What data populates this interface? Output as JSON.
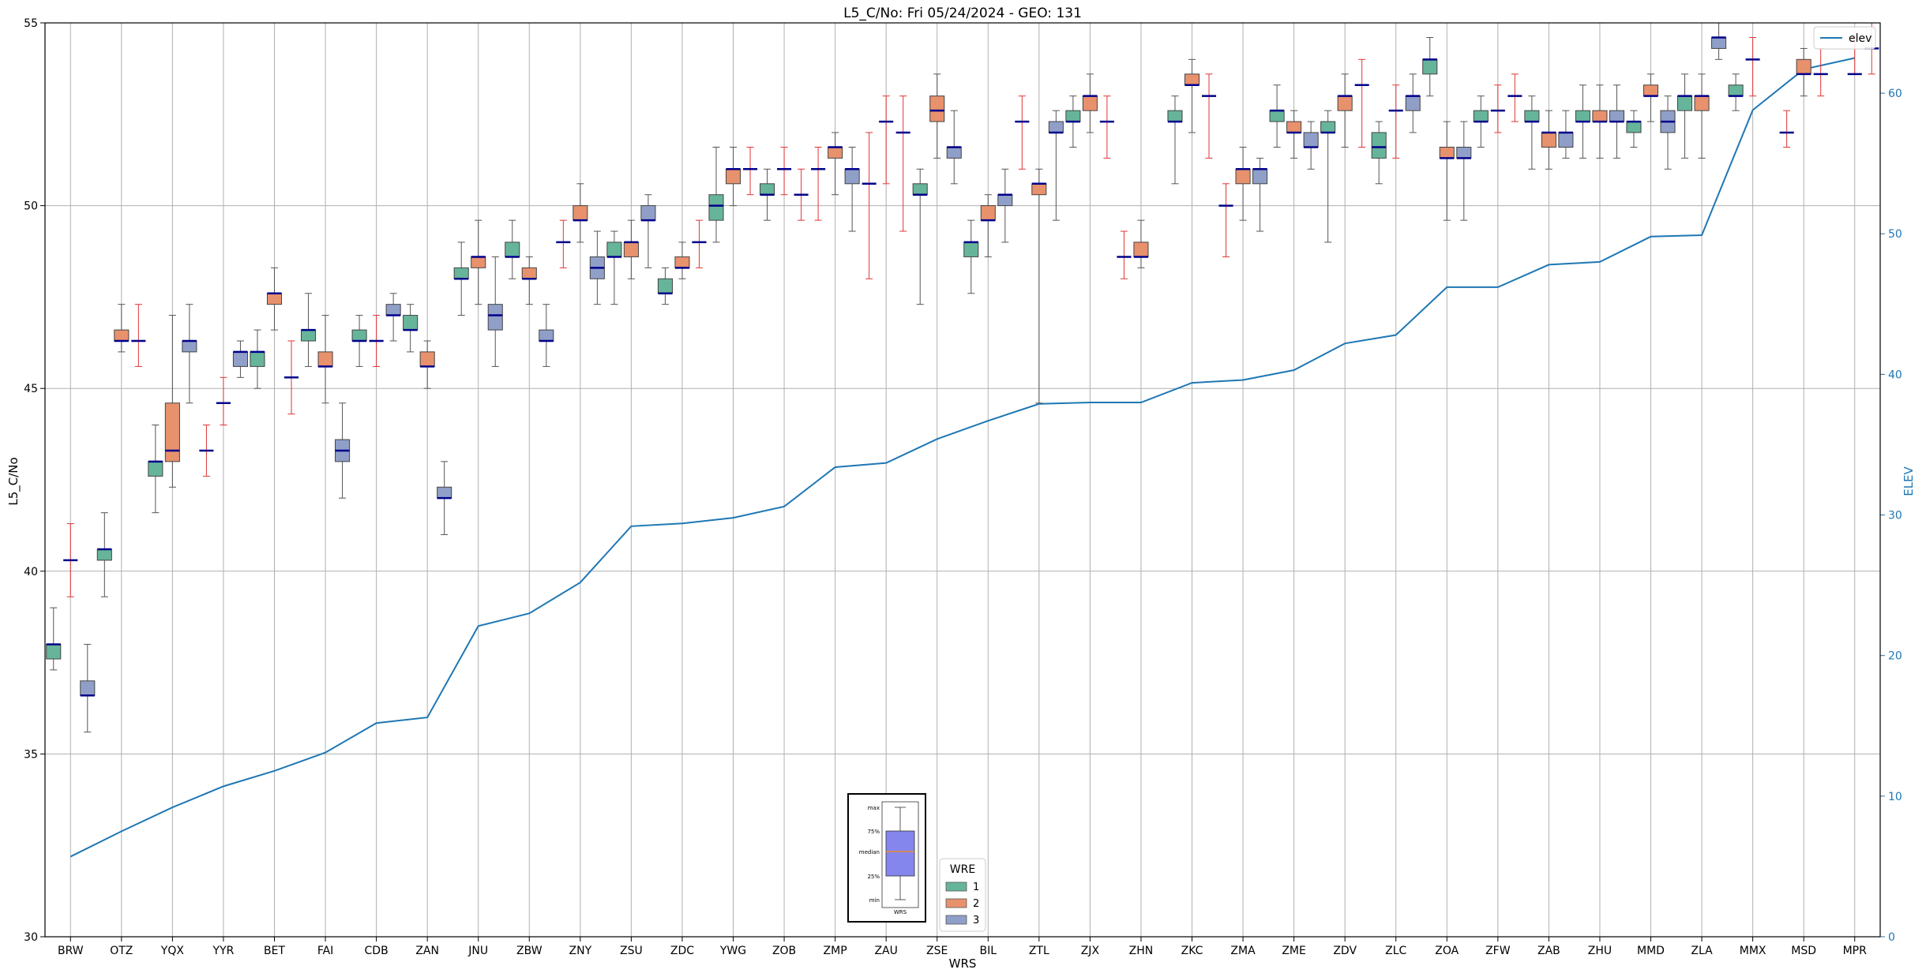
{
  "chart_data": {
    "type": "box",
    "title": "L5_C/No: Fri 05/24/2024 - GEO: 131",
    "xlabel": "WRS",
    "ylabel": "L5_C/No",
    "y2label": "ELEV",
    "ylim": [
      30,
      55
    ],
    "y2lim": [
      0,
      65
    ],
    "yticks": [
      30,
      35,
      40,
      45,
      50,
      55
    ],
    "y2ticks": [
      0,
      10,
      20,
      30,
      40,
      50,
      60
    ],
    "grid": true,
    "categories": [
      "BRW",
      "OTZ",
      "YQX",
      "YYR",
      "BET",
      "FAI",
      "CDB",
      "ZAN",
      "JNU",
      "ZBW",
      "ZNY",
      "ZSU",
      "ZDC",
      "YWG",
      "ZOB",
      "ZMP",
      "ZAU",
      "ZSE",
      "BIL",
      "ZTL",
      "ZJX",
      "ZHN",
      "ZKC",
      "ZMA",
      "ZME",
      "ZDV",
      "ZLC",
      "ZOA",
      "ZFW",
      "ZAB",
      "ZHU",
      "MMD",
      "ZLA",
      "MMX",
      "MSD",
      "MPR"
    ],
    "legend": {
      "title": "WRE",
      "placement": "bottom-center",
      "entries": [
        {
          "name": "1",
          "color": "#66b59a"
        },
        {
          "name": "2",
          "color": "#e8916d"
        },
        {
          "name": "3",
          "color": "#8f9fc8"
        }
      ]
    },
    "line_legend": {
      "name": "elev",
      "placement": "top-right",
      "color": "#1f77b4"
    },
    "key_box": {
      "labels": [
        "max",
        "75%",
        "median",
        "25%",
        "min"
      ],
      "xlabel": "WRS",
      "color": "#8585ee"
    },
    "elevation": [
      5.7,
      7.5,
      9.2,
      10.7,
      11.8,
      13.1,
      15.2,
      15.6,
      22.1,
      23.0,
      25.2,
      29.2,
      29.4,
      29.8,
      30.6,
      33.4,
      33.7,
      35.4,
      36.7,
      37.9,
      38.0,
      38.0,
      39.4,
      39.6,
      40.3,
      42.2,
      42.8,
      46.2,
      46.2,
      47.8,
      48.0,
      49.8,
      49.9,
      58.8,
      61.7,
      62.5
    ],
    "boxes": [
      {
        "cat": "BRW",
        "wre": 1,
        "min": 37.3,
        "q1": 37.6,
        "median": 38.0,
        "q3": 38.0,
        "max": 39.0
      },
      {
        "cat": "BRW",
        "wre": 2,
        "min": 39.3,
        "q1": 40.3,
        "median": 40.3,
        "q3": 40.3,
        "max": 41.3
      },
      {
        "cat": "BRW",
        "wre": 3,
        "min": 35.6,
        "q1": 36.6,
        "median": 36.6,
        "q3": 37.0,
        "max": 38.0
      },
      {
        "cat": "OTZ",
        "wre": 1,
        "min": 39.3,
        "q1": 40.3,
        "median": 40.6,
        "q3": 40.6,
        "max": 41.6
      },
      {
        "cat": "OTZ",
        "wre": 2,
        "min": 46.0,
        "q1": 46.3,
        "median": 46.3,
        "q3": 46.6,
        "max": 47.3
      },
      {
        "cat": "OTZ",
        "wre": 3,
        "min": 45.6,
        "q1": 46.3,
        "median": 46.3,
        "q3": 46.3,
        "max": 47.3
      },
      {
        "cat": "YQX",
        "wre": 1,
        "min": 41.6,
        "q1": 42.6,
        "median": 43.0,
        "q3": 43.0,
        "max": 44.0
      },
      {
        "cat": "YQX",
        "wre": 2,
        "min": 42.3,
        "q1": 43.0,
        "median": 43.3,
        "q3": 44.6,
        "max": 47.0
      },
      {
        "cat": "YQX",
        "wre": 3,
        "min": 44.6,
        "q1": 46.0,
        "median": 46.3,
        "q3": 46.3,
        "max": 47.3
      },
      {
        "cat": "YYR",
        "wre": 1,
        "min": 42.6,
        "q1": 43.3,
        "median": 43.3,
        "q3": 43.3,
        "max": 44.0
      },
      {
        "cat": "YYR",
        "wre": 2,
        "min": 44.0,
        "q1": 44.6,
        "median": 44.6,
        "q3": 44.6,
        "max": 45.3
      },
      {
        "cat": "YYR",
        "wre": 3,
        "min": 45.3,
        "q1": 45.6,
        "median": 46.0,
        "q3": 46.0,
        "max": 46.3
      },
      {
        "cat": "BET",
        "wre": 1,
        "min": 45.0,
        "q1": 45.6,
        "median": 46.0,
        "q3": 46.0,
        "max": 46.6
      },
      {
        "cat": "BET",
        "wre": 2,
        "min": 46.6,
        "q1": 47.3,
        "median": 47.6,
        "q3": 47.6,
        "max": 48.3
      },
      {
        "cat": "BET",
        "wre": 3,
        "min": 44.3,
        "q1": 45.3,
        "median": 45.3,
        "q3": 45.3,
        "max": 46.3
      },
      {
        "cat": "FAI",
        "wre": 1,
        "min": 45.6,
        "q1": 46.3,
        "median": 46.6,
        "q3": 46.6,
        "max": 47.6
      },
      {
        "cat": "FAI",
        "wre": 2,
        "min": 44.6,
        "q1": 45.6,
        "median": 45.6,
        "q3": 46.0,
        "max": 47.0
      },
      {
        "cat": "FAI",
        "wre": 3,
        "min": 42.0,
        "q1": 43.0,
        "median": 43.3,
        "q3": 43.6,
        "max": 44.6
      },
      {
        "cat": "CDB",
        "wre": 1,
        "min": 45.6,
        "q1": 46.3,
        "median": 46.3,
        "q3": 46.6,
        "max": 47.0
      },
      {
        "cat": "CDB",
        "wre": 2,
        "min": 45.6,
        "q1": 46.3,
        "median": 46.3,
        "q3": 46.3,
        "max": 47.0
      },
      {
        "cat": "CDB",
        "wre": 3,
        "min": 46.3,
        "q1": 47.0,
        "median": 47.0,
        "q3": 47.3,
        "max": 47.6
      },
      {
        "cat": "ZAN",
        "wre": 1,
        "min": 46.0,
        "q1": 46.6,
        "median": 46.6,
        "q3": 47.0,
        "max": 47.3
      },
      {
        "cat": "ZAN",
        "wre": 2,
        "min": 45.0,
        "q1": 45.6,
        "median": 45.6,
        "q3": 46.0,
        "max": 46.3
      },
      {
        "cat": "ZAN",
        "wre": 3,
        "min": 41.0,
        "q1": 42.0,
        "median": 42.0,
        "q3": 42.3,
        "max": 43.0
      },
      {
        "cat": "JNU",
        "wre": 1,
        "min": 47.0,
        "q1": 48.0,
        "median": 48.0,
        "q3": 48.3,
        "max": 49.0
      },
      {
        "cat": "JNU",
        "wre": 2,
        "min": 47.3,
        "q1": 48.3,
        "median": 48.6,
        "q3": 48.6,
        "max": 49.6
      },
      {
        "cat": "JNU",
        "wre": 3,
        "min": 45.6,
        "q1": 46.6,
        "median": 47.0,
        "q3": 47.3,
        "max": 48.6
      },
      {
        "cat": "ZBW",
        "wre": 1,
        "min": 48.0,
        "q1": 48.6,
        "median": 48.6,
        "q3": 49.0,
        "max": 49.6
      },
      {
        "cat": "ZBW",
        "wre": 2,
        "min": 47.3,
        "q1": 48.0,
        "median": 48.0,
        "q3": 48.3,
        "max": 48.6
      },
      {
        "cat": "ZBW",
        "wre": 3,
        "min": 45.6,
        "q1": 46.3,
        "median": 46.3,
        "q3": 46.6,
        "max": 47.3
      },
      {
        "cat": "ZNY",
        "wre": 1,
        "min": 48.3,
        "q1": 49.0,
        "median": 49.0,
        "q3": 49.0,
        "max": 49.6
      },
      {
        "cat": "ZNY",
        "wre": 2,
        "min": 49.0,
        "q1": 49.6,
        "median": 49.6,
        "q3": 50.0,
        "max": 50.6
      },
      {
        "cat": "ZNY",
        "wre": 3,
        "min": 47.3,
        "q1": 48.0,
        "median": 48.3,
        "q3": 48.6,
        "max": 49.3
      },
      {
        "cat": "ZSU",
        "wre": 1,
        "min": 47.3,
        "q1": 48.6,
        "median": 48.6,
        "q3": 49.0,
        "max": 49.3
      },
      {
        "cat": "ZSU",
        "wre": 2,
        "min": 48.0,
        "q1": 48.6,
        "median": 49.0,
        "q3": 49.0,
        "max": 49.6
      },
      {
        "cat": "ZSU",
        "wre": 3,
        "min": 48.3,
        "q1": 49.6,
        "median": 49.6,
        "q3": 50.0,
        "max": 50.3
      },
      {
        "cat": "ZDC",
        "wre": 1,
        "min": 47.3,
        "q1": 47.6,
        "median": 47.6,
        "q3": 48.0,
        "max": 48.3
      },
      {
        "cat": "ZDC",
        "wre": 2,
        "min": 48.0,
        "q1": 48.3,
        "median": 48.3,
        "q3": 48.6,
        "max": 49.0
      },
      {
        "cat": "ZDC",
        "wre": 3,
        "min": 48.3,
        "q1": 49.0,
        "median": 49.0,
        "q3": 49.0,
        "max": 49.6
      },
      {
        "cat": "YWG",
        "wre": 1,
        "min": 49.0,
        "q1": 49.6,
        "median": 50.0,
        "q3": 50.3,
        "max": 51.6
      },
      {
        "cat": "YWG",
        "wre": 2,
        "min": 50.0,
        "q1": 50.6,
        "median": 51.0,
        "q3": 51.0,
        "max": 51.6
      },
      {
        "cat": "YWG",
        "wre": 3,
        "min": 50.3,
        "q1": 51.0,
        "median": 51.0,
        "q3": 51.0,
        "max": 51.6
      },
      {
        "cat": "ZOB",
        "wre": 1,
        "min": 49.6,
        "q1": 50.3,
        "median": 50.3,
        "q3": 50.6,
        "max": 51.0
      },
      {
        "cat": "ZOB",
        "wre": 2,
        "min": 50.3,
        "q1": 51.0,
        "median": 51.0,
        "q3": 51.0,
        "max": 51.6
      },
      {
        "cat": "ZOB",
        "wre": 3,
        "min": 49.6,
        "q1": 50.3,
        "median": 50.3,
        "q3": 50.3,
        "max": 51.0
      },
      {
        "cat": "ZMP",
        "wre": 1,
        "min": 49.6,
        "q1": 51.0,
        "median": 51.0,
        "q3": 51.0,
        "max": 51.6
      },
      {
        "cat": "ZMP",
        "wre": 2,
        "min": 50.3,
        "q1": 51.3,
        "median": 51.6,
        "q3": 51.6,
        "max": 52.0
      },
      {
        "cat": "ZMP",
        "wre": 3,
        "min": 49.3,
        "q1": 50.6,
        "median": 51.0,
        "q3": 51.0,
        "max": 51.6
      },
      {
        "cat": "ZAU",
        "wre": 1,
        "min": 48.0,
        "q1": 50.6,
        "median": 50.6,
        "q3": 50.6,
        "max": 52.0
      },
      {
        "cat": "ZAU",
        "wre": 2,
        "min": 50.6,
        "q1": 52.3,
        "median": 52.3,
        "q3": 52.3,
        "max": 53.0
      },
      {
        "cat": "ZAU",
        "wre": 3,
        "min": 49.3,
        "q1": 52.0,
        "median": 52.0,
        "q3": 52.0,
        "max": 53.0
      },
      {
        "cat": "ZSE",
        "wre": 1,
        "min": 47.3,
        "q1": 50.3,
        "median": 50.3,
        "q3": 50.6,
        "max": 51.0
      },
      {
        "cat": "ZSE",
        "wre": 2,
        "min": 51.3,
        "q1": 52.3,
        "median": 52.6,
        "q3": 53.0,
        "max": 53.6
      },
      {
        "cat": "ZSE",
        "wre": 3,
        "min": 50.6,
        "q1": 51.3,
        "median": 51.6,
        "q3": 51.6,
        "max": 52.6
      },
      {
        "cat": "BIL",
        "wre": 1,
        "min": 47.6,
        "q1": 48.6,
        "median": 49.0,
        "q3": 49.0,
        "max": 49.6
      },
      {
        "cat": "BIL",
        "wre": 2,
        "min": 48.6,
        "q1": 49.6,
        "median": 49.6,
        "q3": 50.0,
        "max": 50.3
      },
      {
        "cat": "BIL",
        "wre": 3,
        "min": 49.0,
        "q1": 50.0,
        "median": 50.3,
        "q3": 50.3,
        "max": 51.0
      },
      {
        "cat": "ZTL",
        "wre": 1,
        "min": 51.0,
        "q1": 52.3,
        "median": 52.3,
        "q3": 52.3,
        "max": 53.0
      },
      {
        "cat": "ZTL",
        "wre": 2,
        "min": 44.6,
        "q1": 50.3,
        "median": 50.6,
        "q3": 50.6,
        "max": 51.0
      },
      {
        "cat": "ZTL",
        "wre": 3,
        "min": 49.6,
        "q1": 52.0,
        "median": 52.0,
        "q3": 52.3,
        "max": 52.6
      },
      {
        "cat": "ZJX",
        "wre": 1,
        "min": 51.6,
        "q1": 52.3,
        "median": 52.3,
        "q3": 52.6,
        "max": 53.0
      },
      {
        "cat": "ZJX",
        "wre": 2,
        "min": 52.0,
        "q1": 52.6,
        "median": 53.0,
        "q3": 53.0,
        "max": 53.6
      },
      {
        "cat": "ZJX",
        "wre": 3,
        "min": 51.3,
        "q1": 52.3,
        "median": 52.3,
        "q3": 52.3,
        "max": 53.0
      },
      {
        "cat": "ZHN",
        "wre": 1,
        "min": 48.0,
        "q1": 48.6,
        "median": 48.6,
        "q3": 48.6,
        "max": 49.3
      },
      {
        "cat": "ZHN",
        "wre": 2,
        "min": 48.3,
        "q1": 48.6,
        "median": 48.6,
        "q3": 49.0,
        "max": 49.6
      },
      {
        "cat": "ZKC",
        "wre": 1,
        "min": 50.6,
        "q1": 52.3,
        "median": 52.3,
        "q3": 52.6,
        "max": 53.0
      },
      {
        "cat": "ZKC",
        "wre": 2,
        "min": 52.0,
        "q1": 53.3,
        "median": 53.3,
        "q3": 53.6,
        "max": 54.0
      },
      {
        "cat": "ZKC",
        "wre": 3,
        "min": 51.3,
        "q1": 53.0,
        "median": 53.0,
        "q3": 53.0,
        "max": 53.6
      },
      {
        "cat": "ZMA",
        "wre": 1,
        "min": 48.6,
        "q1": 50.0,
        "median": 50.0,
        "q3": 50.0,
        "max": 50.6
      },
      {
        "cat": "ZMA",
        "wre": 2,
        "min": 49.6,
        "q1": 50.6,
        "median": 51.0,
        "q3": 51.0,
        "max": 51.6
      },
      {
        "cat": "ZMA",
        "wre": 3,
        "min": 49.3,
        "q1": 50.6,
        "median": 51.0,
        "q3": 51.0,
        "max": 51.3
      },
      {
        "cat": "ZME",
        "wre": 1,
        "min": 51.6,
        "q1": 52.3,
        "median": 52.6,
        "q3": 52.6,
        "max": 53.3
      },
      {
        "cat": "ZME",
        "wre": 2,
        "min": 51.3,
        "q1": 52.0,
        "median": 52.0,
        "q3": 52.3,
        "max": 52.6
      },
      {
        "cat": "ZME",
        "wre": 3,
        "min": 51.0,
        "q1": 51.6,
        "median": 51.6,
        "q3": 52.0,
        "max": 52.3
      },
      {
        "cat": "ZDV",
        "wre": 1,
        "min": 49.0,
        "q1": 52.0,
        "median": 52.0,
        "q3": 52.3,
        "max": 52.6
      },
      {
        "cat": "ZDV",
        "wre": 2,
        "min": 51.6,
        "q1": 52.6,
        "median": 53.0,
        "q3": 53.0,
        "max": 53.6
      },
      {
        "cat": "ZDV",
        "wre": 3,
        "min": 51.6,
        "q1": 53.3,
        "median": 53.3,
        "q3": 53.3,
        "max": 54.0
      },
      {
        "cat": "ZLC",
        "wre": 1,
        "min": 50.6,
        "q1": 51.3,
        "median": 51.6,
        "q3": 52.0,
        "max": 52.3
      },
      {
        "cat": "ZLC",
        "wre": 2,
        "min": 51.3,
        "q1": 52.6,
        "median": 52.6,
        "q3": 52.6,
        "max": 53.3
      },
      {
        "cat": "ZLC",
        "wre": 3,
        "min": 52.0,
        "q1": 52.6,
        "median": 53.0,
        "q3": 53.0,
        "max": 53.6
      },
      {
        "cat": "ZOA",
        "wre": 1,
        "min": 53.0,
        "q1": 53.6,
        "median": 54.0,
        "q3": 54.0,
        "max": 54.6
      },
      {
        "cat": "ZOA",
        "wre": 2,
        "min": 49.6,
        "q1": 51.3,
        "median": 51.3,
        "q3": 51.6,
        "max": 52.3
      },
      {
        "cat": "ZOA",
        "wre": 3,
        "min": 49.6,
        "q1": 51.3,
        "median": 51.3,
        "q3": 51.6,
        "max": 52.3
      },
      {
        "cat": "ZFW",
        "wre": 1,
        "min": 51.6,
        "q1": 52.3,
        "median": 52.3,
        "q3": 52.6,
        "max": 53.0
      },
      {
        "cat": "ZFW",
        "wre": 2,
        "min": 52.0,
        "q1": 52.6,
        "median": 52.6,
        "q3": 52.6,
        "max": 53.3
      },
      {
        "cat": "ZFW",
        "wre": 3,
        "min": 52.3,
        "q1": 53.0,
        "median": 53.0,
        "q3": 53.0,
        "max": 53.6
      },
      {
        "cat": "ZAB",
        "wre": 1,
        "min": 51.0,
        "q1": 52.3,
        "median": 52.3,
        "q3": 52.6,
        "max": 53.0
      },
      {
        "cat": "ZAB",
        "wre": 2,
        "min": 51.0,
        "q1": 51.6,
        "median": 52.0,
        "q3": 52.0,
        "max": 52.6
      },
      {
        "cat": "ZAB",
        "wre": 3,
        "min": 51.3,
        "q1": 51.6,
        "median": 52.0,
        "q3": 52.0,
        "max": 52.6
      },
      {
        "cat": "ZHU",
        "wre": 1,
        "min": 51.3,
        "q1": 52.3,
        "median": 52.3,
        "q3": 52.6,
        "max": 53.3
      },
      {
        "cat": "ZHU",
        "wre": 2,
        "min": 51.3,
        "q1": 52.3,
        "median": 52.3,
        "q3": 52.6,
        "max": 53.3
      },
      {
        "cat": "ZHU",
        "wre": 3,
        "min": 51.3,
        "q1": 52.3,
        "median": 52.3,
        "q3": 52.6,
        "max": 53.3
      },
      {
        "cat": "MMD",
        "wre": 1,
        "min": 51.6,
        "q1": 52.0,
        "median": 52.3,
        "q3": 52.3,
        "max": 52.6
      },
      {
        "cat": "MMD",
        "wre": 2,
        "min": 52.3,
        "q1": 53.0,
        "median": 53.0,
        "q3": 53.3,
        "max": 53.6
      },
      {
        "cat": "MMD",
        "wre": 3,
        "min": 51.0,
        "q1": 52.0,
        "median": 52.3,
        "q3": 52.6,
        "max": 53.0
      },
      {
        "cat": "ZLA",
        "wre": 1,
        "min": 51.3,
        "q1": 52.6,
        "median": 53.0,
        "q3": 53.0,
        "max": 53.6
      },
      {
        "cat": "ZLA",
        "wre": 2,
        "min": 51.3,
        "q1": 52.6,
        "median": 53.0,
        "q3": 53.0,
        "max": 53.6
      },
      {
        "cat": "ZLA",
        "wre": 3,
        "min": 54.0,
        "q1": 54.3,
        "median": 54.6,
        "q3": 54.6,
        "max": 55.0
      },
      {
        "cat": "MMX",
        "wre": 1,
        "min": 52.6,
        "q1": 53.0,
        "median": 53.0,
        "q3": 53.3,
        "max": 53.6
      },
      {
        "cat": "MMX",
        "wre": 2,
        "min": 53.0,
        "q1": 54.0,
        "median": 54.0,
        "q3": 54.0,
        "max": 54.6
      },
      {
        "cat": "MSD",
        "wre": 1,
        "min": 51.6,
        "q1": 52.0,
        "median": 52.0,
        "q3": 52.0,
        "max": 52.6
      },
      {
        "cat": "MSD",
        "wre": 2,
        "min": 53.0,
        "q1": 53.6,
        "median": 53.6,
        "q3": 54.0,
        "max": 54.3
      },
      {
        "cat": "MSD",
        "wre": 3,
        "min": 53.0,
        "q1": 53.6,
        "median": 53.6,
        "q3": 53.6,
        "max": 54.3
      },
      {
        "cat": "MPR",
        "wre": 2,
        "min": 53.6,
        "q1": 53.6,
        "median": 53.6,
        "q3": 53.6,
        "max": 54.6
      },
      {
        "cat": "MPR",
        "wre": 3,
        "min": 53.6,
        "q1": 54.3,
        "median": 54.3,
        "q3": 54.3,
        "max": 55.0
      }
    ]
  }
}
